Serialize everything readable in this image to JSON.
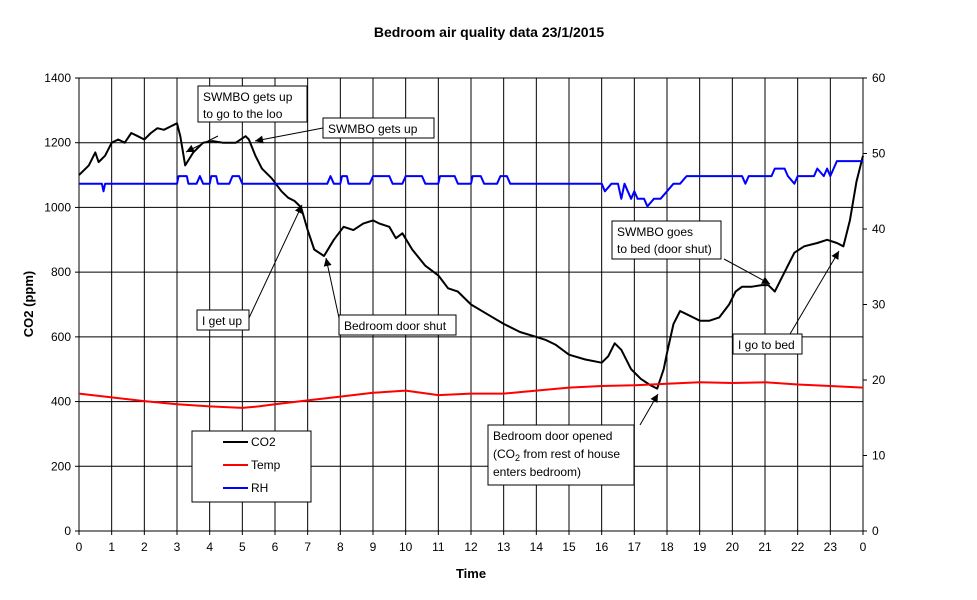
{
  "chart_data": {
    "type": "line",
    "title": "Bedroom air quality data 23/1/2015",
    "xlabel": "Time",
    "ylabel": "CO2 (ppm)",
    "x_ticks": [
      "0",
      "1",
      "2",
      "3",
      "4",
      "5",
      "6",
      "7",
      "8",
      "9",
      "10",
      "11",
      "12",
      "13",
      "14",
      "15",
      "16",
      "17",
      "18",
      "19",
      "20",
      "21",
      "22",
      "23",
      "0"
    ],
    "x_range": [
      0,
      24
    ],
    "ylim": [
      0,
      1400
    ],
    "y_ticks": [
      0,
      200,
      400,
      600,
      800,
      1000,
      1200,
      1400
    ],
    "y2lim": [
      0,
      60
    ],
    "y2_ticks": [
      0,
      10,
      20,
      30,
      40,
      50,
      60
    ],
    "grid": true,
    "legend_position": "bottom-left",
    "series": [
      {
        "name": "CO2",
        "color": "#000000",
        "axis": "left",
        "points": [
          [
            0,
            1100
          ],
          [
            0.3,
            1130
          ],
          [
            0.5,
            1170
          ],
          [
            0.6,
            1140
          ],
          [
            0.8,
            1160
          ],
          [
            1,
            1200
          ],
          [
            1.2,
            1210
          ],
          [
            1.4,
            1200
          ],
          [
            1.6,
            1230
          ],
          [
            1.8,
            1220
          ],
          [
            2,
            1210
          ],
          [
            2.2,
            1230
          ],
          [
            2.4,
            1245
          ],
          [
            2.6,
            1240
          ],
          [
            2.8,
            1250
          ],
          [
            3,
            1260
          ],
          [
            3.1,
            1220
          ],
          [
            3.25,
            1130
          ],
          [
            3.5,
            1170
          ],
          [
            3.8,
            1200
          ],
          [
            4.1,
            1205
          ],
          [
            4.4,
            1200
          ],
          [
            4.8,
            1200
          ],
          [
            5.1,
            1220
          ],
          [
            5.2,
            1210
          ],
          [
            5.4,
            1160
          ],
          [
            5.6,
            1120
          ],
          [
            5.9,
            1090
          ],
          [
            6.2,
            1050
          ],
          [
            6.4,
            1030
          ],
          [
            6.6,
            1020
          ],
          [
            6.8,
            1000
          ],
          [
            7,
            930
          ],
          [
            7.2,
            870
          ],
          [
            7.5,
            850
          ],
          [
            7.8,
            900
          ],
          [
            8.1,
            940
          ],
          [
            8.4,
            930
          ],
          [
            8.7,
            950
          ],
          [
            9,
            960
          ],
          [
            9.2,
            950
          ],
          [
            9.5,
            940
          ],
          [
            9.7,
            905
          ],
          [
            9.9,
            920
          ],
          [
            10.2,
            870
          ],
          [
            10.6,
            820
          ],
          [
            11,
            790
          ],
          [
            11.3,
            750
          ],
          [
            11.6,
            740
          ],
          [
            12,
            700
          ],
          [
            12.5,
            670
          ],
          [
            13,
            640
          ],
          [
            13.5,
            615
          ],
          [
            14,
            600
          ],
          [
            14.3,
            590
          ],
          [
            14.6,
            575
          ],
          [
            15,
            545
          ],
          [
            15.5,
            530
          ],
          [
            16,
            520
          ],
          [
            16.2,
            540
          ],
          [
            16.4,
            580
          ],
          [
            16.6,
            560
          ],
          [
            16.9,
            500
          ],
          [
            17.2,
            470
          ],
          [
            17.5,
            450
          ],
          [
            17.7,
            440
          ],
          [
            17.9,
            500
          ],
          [
            18,
            550
          ],
          [
            18.2,
            640
          ],
          [
            18.4,
            680
          ],
          [
            18.6,
            670
          ],
          [
            18.8,
            660
          ],
          [
            19,
            650
          ],
          [
            19.3,
            650
          ],
          [
            19.6,
            660
          ],
          [
            19.9,
            700
          ],
          [
            20.1,
            740
          ],
          [
            20.3,
            755
          ],
          [
            20.6,
            755
          ],
          [
            20.9,
            760
          ],
          [
            21.1,
            760
          ],
          [
            21.3,
            740
          ],
          [
            21.6,
            800
          ],
          [
            21.9,
            860
          ],
          [
            22.2,
            880
          ],
          [
            22.6,
            890
          ],
          [
            22.9,
            900
          ],
          [
            23.2,
            890
          ],
          [
            23.4,
            880
          ],
          [
            23.6,
            960
          ],
          [
            23.8,
            1080
          ],
          [
            24,
            1160
          ]
        ]
      },
      {
        "name": "Temp",
        "color": "#ff0000",
        "axis": "right",
        "points": [
          [
            0,
            18.2
          ],
          [
            1,
            17.7
          ],
          [
            2,
            17.2
          ],
          [
            3,
            16.8
          ],
          [
            4,
            16.5
          ],
          [
            5,
            16.3
          ],
          [
            5.5,
            16.5
          ],
          [
            6,
            16.8
          ],
          [
            7,
            17.3
          ],
          [
            8,
            17.8
          ],
          [
            9,
            18.3
          ],
          [
            10,
            18.6
          ],
          [
            11,
            18.0
          ],
          [
            12,
            18.2
          ],
          [
            13,
            18.2
          ],
          [
            14,
            18.6
          ],
          [
            15,
            19.0
          ],
          [
            16,
            19.2
          ],
          [
            17,
            19.3
          ],
          [
            18,
            19.5
          ],
          [
            19,
            19.7
          ],
          [
            20,
            19.6
          ],
          [
            21,
            19.7
          ],
          [
            22,
            19.4
          ],
          [
            23,
            19.2
          ],
          [
            24,
            19.0
          ]
        ]
      },
      {
        "name": "RH",
        "color": "#0000ff",
        "axis": "right",
        "points": [
          [
            0,
            46
          ],
          [
            0.7,
            46
          ],
          [
            0.75,
            45
          ],
          [
            0.8,
            46
          ],
          [
            3,
            46
          ],
          [
            3.05,
            47
          ],
          [
            3.3,
            47
          ],
          [
            3.35,
            46
          ],
          [
            3.6,
            46
          ],
          [
            3.7,
            47
          ],
          [
            3.8,
            46
          ],
          [
            4,
            46
          ],
          [
            4.05,
            47
          ],
          [
            4.2,
            47
          ],
          [
            4.25,
            46
          ],
          [
            4.6,
            46
          ],
          [
            4.7,
            47
          ],
          [
            4.9,
            47
          ],
          [
            5,
            46
          ],
          [
            7.6,
            46
          ],
          [
            7.7,
            47
          ],
          [
            7.8,
            46
          ],
          [
            8,
            46
          ],
          [
            8.05,
            47
          ],
          [
            8.2,
            47
          ],
          [
            8.25,
            46
          ],
          [
            8.9,
            46
          ],
          [
            9,
            47
          ],
          [
            9.5,
            47
          ],
          [
            9.6,
            46
          ],
          [
            9.9,
            46
          ],
          [
            10,
            47
          ],
          [
            10.5,
            47
          ],
          [
            10.6,
            46
          ],
          [
            11,
            46
          ],
          [
            11.05,
            47
          ],
          [
            11.5,
            47
          ],
          [
            11.6,
            46
          ],
          [
            12,
            46
          ],
          [
            12.05,
            47
          ],
          [
            12.3,
            47
          ],
          [
            12.4,
            46
          ],
          [
            12.8,
            46
          ],
          [
            12.9,
            47
          ],
          [
            13.1,
            47
          ],
          [
            13.2,
            46
          ],
          [
            16,
            46
          ],
          [
            16.1,
            45
          ],
          [
            16.3,
            46
          ],
          [
            16.5,
            46
          ],
          [
            16.6,
            44
          ],
          [
            16.7,
            46
          ],
          [
            16.8,
            45
          ],
          [
            16.9,
            44
          ],
          [
            17,
            45
          ],
          [
            17.1,
            44
          ],
          [
            17.3,
            44
          ],
          [
            17.4,
            43
          ],
          [
            17.6,
            44
          ],
          [
            17.8,
            44
          ],
          [
            18,
            45
          ],
          [
            18.2,
            46
          ],
          [
            18.4,
            46
          ],
          [
            18.6,
            47
          ],
          [
            20.3,
            47
          ],
          [
            20.4,
            46
          ],
          [
            20.5,
            47
          ],
          [
            21.2,
            47
          ],
          [
            21.3,
            48
          ],
          [
            21.6,
            48
          ],
          [
            21.7,
            47
          ],
          [
            21.9,
            46
          ],
          [
            22,
            47
          ],
          [
            22.5,
            47
          ],
          [
            22.6,
            48
          ],
          [
            22.8,
            47
          ],
          [
            22.9,
            48
          ],
          [
            23,
            47
          ],
          [
            23.1,
            48
          ],
          [
            23.2,
            49
          ],
          [
            24,
            49
          ]
        ]
      }
    ],
    "annotations": [
      {
        "lines": [
          "SWMBO gets up",
          "to go to the loo"
        ]
      },
      {
        "lines": [
          "SWMBO gets up"
        ]
      },
      {
        "lines": [
          "I get up"
        ]
      },
      {
        "lines": [
          "Bedroom door shut"
        ]
      },
      {
        "lines": [
          "SWMBO goes",
          "to bed (door shut)"
        ]
      },
      {
        "lines": [
          "I go to bed"
        ]
      },
      {
        "lines": [
          "Bedroom door opened",
          "(CO",
          "2",
          " from rest of house",
          "enters bedroom)"
        ]
      }
    ]
  }
}
